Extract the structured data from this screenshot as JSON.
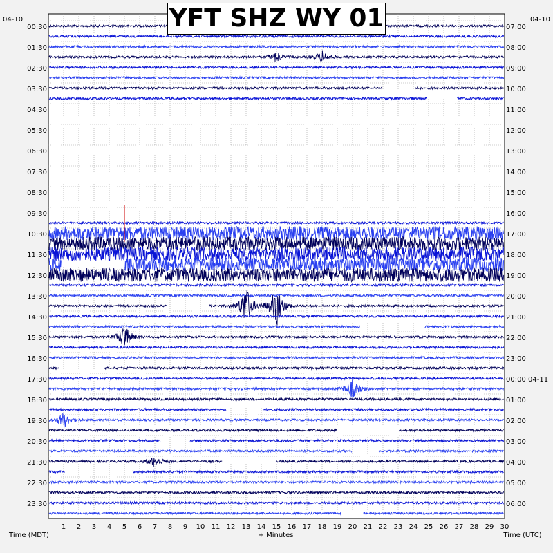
{
  "title": "YFT SHZ WY 01",
  "left_date": "04-10",
  "right_date": "04-10",
  "left_times": [
    "00:30",
    "01:30",
    "02:30",
    "03:30",
    "04:30",
    "05:30",
    "06:30",
    "07:30",
    "08:30",
    "09:30",
    "10:30",
    "11:30",
    "12:30",
    "13:30",
    "14:30",
    "15:30",
    "16:30",
    "17:30",
    "18:30",
    "19:30",
    "20:30",
    "21:30",
    "22:30",
    "23:30"
  ],
  "right_times": [
    "07:00",
    "08:00",
    "09:00",
    "10:00",
    "11:00",
    "12:00",
    "13:00",
    "14:00",
    "15:00",
    "16:00",
    "17:00",
    "18:00",
    "19:00",
    "20:00",
    "21:00",
    "22:00",
    "23:00",
    "00:00 04-11",
    "01:00",
    "02:00",
    "03:00",
    "04:00",
    "05:00",
    "06:00"
  ],
  "x_ticks": [
    "1",
    "2",
    "3",
    "4",
    "5",
    "6",
    "7",
    "8",
    "9",
    "10",
    "11",
    "12",
    "13",
    "14",
    "15",
    "16",
    "17",
    "18",
    "19",
    "20",
    "21",
    "22",
    "23",
    "24",
    "25",
    "26",
    "27",
    "28",
    "29",
    "30"
  ],
  "xlabel_left": "Time (MDT)",
  "xlabel_center": "+ Minutes",
  "xlabel_right": "Time (UTC)",
  "colors": {
    "trace_a": "#00005a",
    "trace_b": "#0a14d6",
    "trace_c": "#2a40f0",
    "marker": "#cc0000",
    "grid": "#9a9a9a"
  },
  "chart_data": {
    "type": "helicorder",
    "minutes_per_row": 30,
    "rows_per_hour": 2,
    "x_range": [
      0,
      30
    ],
    "grid": true,
    "events": [
      {
        "row": 18,
        "minute": 5.0,
        "amplitude": 4
      },
      {
        "row": 27,
        "minute": 13.0,
        "amplitude": 30
      },
      {
        "row": 27,
        "minute": 15.0,
        "amplitude": 32
      },
      {
        "row": 30,
        "minute": 5.0,
        "amplitude": 18
      },
      {
        "row": 35,
        "minute": 20.0,
        "amplitude": 14
      },
      {
        "row": 38,
        "minute": 1.0,
        "amplitude": 12
      },
      {
        "row": 42,
        "minute": 7.0,
        "amplitude": 8
      },
      {
        "row": 3,
        "minute": 18.0,
        "amplitude": 8
      },
      {
        "row": 3,
        "minute": 15.0,
        "amplitude": 7
      }
    ],
    "noisy_rows": [
      20,
      21,
      22,
      23,
      24
    ]
  }
}
